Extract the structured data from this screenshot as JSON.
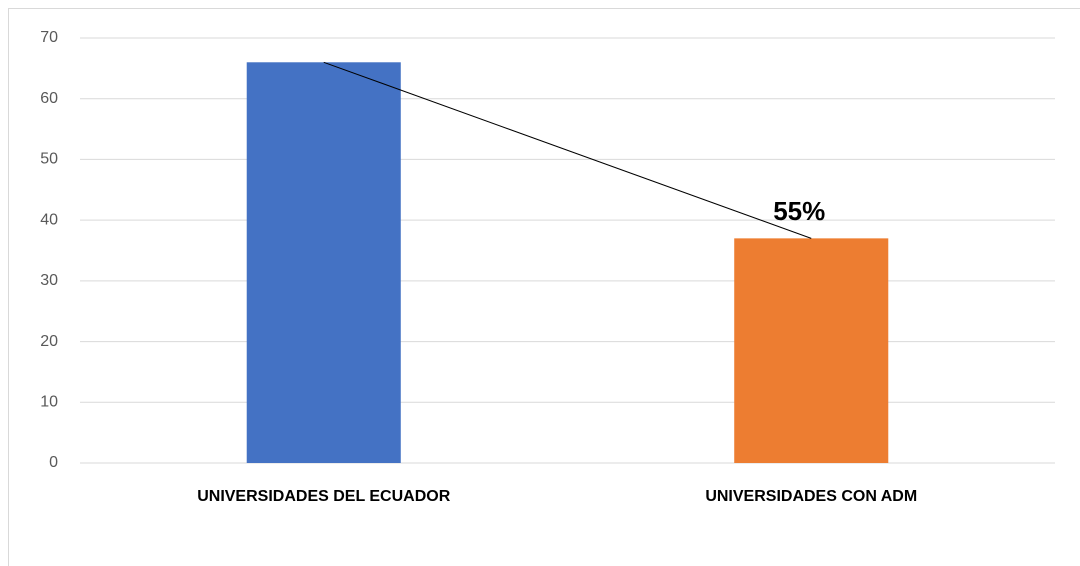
{
  "chart_data": {
    "type": "bar",
    "categories": [
      "UNIVERSIDADES DEL ECUADOR",
      "UNIVERSIDADES CON ADM"
    ],
    "values": [
      66,
      37
    ],
    "colors": [
      "#4472c4",
      "#ed7d31"
    ],
    "annotation": "55%",
    "ylim": [
      0,
      70
    ],
    "yticks": [
      0,
      10,
      20,
      30,
      40,
      50,
      60,
      70
    ],
    "grid": true
  }
}
